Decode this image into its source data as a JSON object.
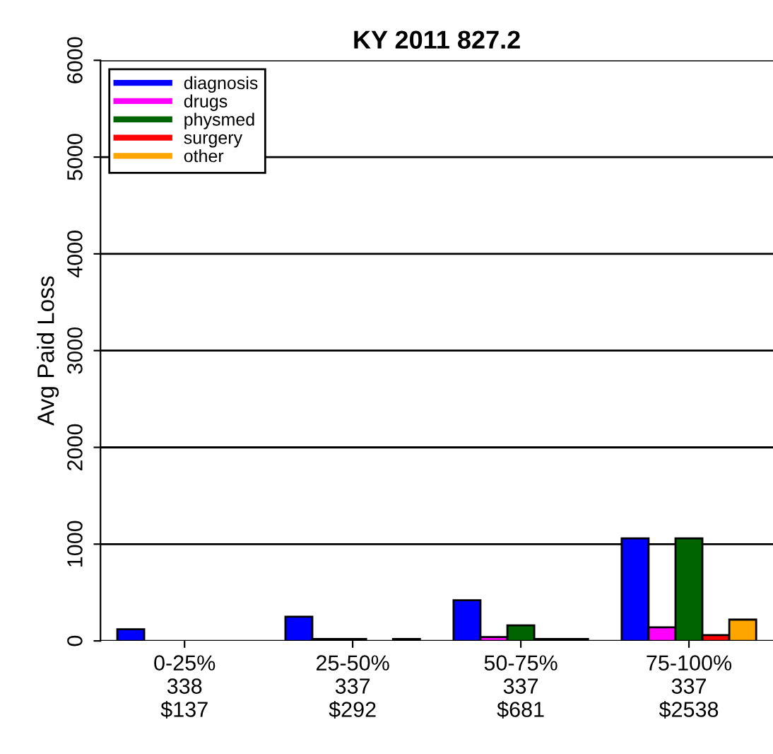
{
  "chart_data": {
    "type": "bar",
    "title": "KY 2011 827.2",
    "ylabel": "Avg Paid Loss",
    "categories": [
      "0-25%\n338\n$137",
      "25-50%\n337\n$292",
      "50-75%\n337\n$681",
      "75-100%\n337\n$2538"
    ],
    "series": [
      {
        "name": "diagnosis",
        "color": "#0000ff",
        "values": [
          120,
          250,
          420,
          1060
        ]
      },
      {
        "name": "drugs",
        "color": "#ff00ff",
        "values": [
          null,
          20,
          40,
          140
        ]
      },
      {
        "name": "physmed",
        "color": "#006400",
        "values": [
          null,
          20,
          160,
          1060
        ]
      },
      {
        "name": "surgery",
        "color": "#ff0000",
        "values": [
          null,
          null,
          20,
          60
        ]
      },
      {
        "name": "other",
        "color": "#ffa500",
        "values": [
          null,
          20,
          20,
          220
        ]
      }
    ],
    "ylim": [
      0,
      6000
    ],
    "yticks": [
      0,
      1000,
      2000,
      3000,
      4000,
      5000,
      6000
    ],
    "grid": "y",
    "legend": "top left"
  }
}
